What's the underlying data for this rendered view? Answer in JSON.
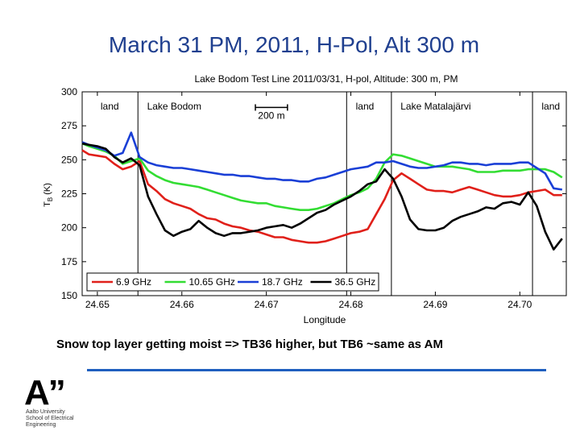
{
  "slide": {
    "title": "March 31 PM, 2011, H-Pol, Alt 300 m",
    "caption": "Snow top layer getting moist => TB36 higher, but TB6 ~same as AM",
    "logo": {
      "mark": "A”",
      "line1": "Aalto University",
      "line2": "School of Electrical",
      "line3": "Engineering"
    }
  },
  "chart_data": {
    "type": "line",
    "title": "Lake Bodom Test Line 2011/03/31, H-pol, Altitude: 300 m, PM",
    "xlabel": "Longitude",
    "ylabel": "T_B (K)",
    "ylabel_main": "T",
    "ylabel_sub": "B",
    "ylabel_unit": "(K)",
    "xlim": [
      24.6482,
      24.7055
    ],
    "ylim": [
      150,
      300
    ],
    "xticks": [
      24.65,
      24.66,
      24.67,
      24.68,
      24.69,
      24.7
    ],
    "xtick_labels": [
      "24.65",
      "24.66",
      "24.67",
      "24.68",
      "24.69",
      "24.70"
    ],
    "yticks": [
      150,
      175,
      200,
      225,
      250,
      275,
      300
    ],
    "ytick_labels": [
      "150",
      "175",
      "200",
      "225",
      "250",
      "275",
      "300"
    ],
    "boundaries": [
      24.6548,
      24.6795,
      24.6848,
      24.7015
    ],
    "region_labels": [
      {
        "text": "land",
        "x": 24.65
      },
      {
        "text": "Lake Bodom",
        "x": 24.6555
      },
      {
        "text": "land",
        "x": 24.6802
      },
      {
        "text": "Lake Matalajärvi",
        "x": 24.6855
      },
      {
        "text": "land",
        "x": 24.7022
      }
    ],
    "scale_bar": {
      "label": "200 m",
      "x_start": 24.6687,
      "x_end": 24.6725,
      "y": 295
    },
    "legend_position": "bottom",
    "series": [
      {
        "name": "6.9 GHz",
        "color": "#e0201a",
        "x": [
          24.6482,
          24.649,
          24.65,
          24.651,
          24.652,
          24.653,
          24.654,
          24.655,
          24.656,
          24.657,
          24.658,
          24.659,
          24.66,
          24.661,
          24.662,
          24.663,
          24.664,
          24.665,
          24.666,
          24.667,
          24.668,
          24.669,
          24.67,
          24.671,
          24.672,
          24.673,
          24.674,
          24.675,
          24.676,
          24.677,
          24.678,
          24.679,
          24.68,
          24.681,
          24.682,
          24.683,
          24.684,
          24.685,
          24.686,
          24.687,
          24.688,
          24.689,
          24.69,
          24.691,
          24.692,
          24.693,
          24.694,
          24.695,
          24.696,
          24.697,
          24.698,
          24.699,
          24.7,
          24.701,
          24.702,
          24.703,
          24.704,
          24.705
        ],
        "y": [
          257,
          254,
          253,
          252,
          247,
          243,
          245,
          249,
          232,
          227,
          221,
          218,
          216,
          214,
          210,
          207,
          206,
          203,
          201,
          200,
          198,
          197,
          195,
          193,
          193,
          191,
          190,
          189,
          189,
          190,
          192,
          194,
          196,
          197,
          199,
          210,
          221,
          235,
          240,
          236,
          232,
          228,
          227,
          227,
          226,
          228,
          230,
          228,
          226,
          224,
          223,
          223,
          224,
          226,
          227,
          228,
          224,
          224
        ]
      },
      {
        "name": "10.65 GHz",
        "color": "#33dd33",
        "x": [
          24.6482,
          24.649,
          24.65,
          24.651,
          24.652,
          24.653,
          24.654,
          24.655,
          24.656,
          24.657,
          24.658,
          24.659,
          24.66,
          24.661,
          24.662,
          24.663,
          24.664,
          24.665,
          24.666,
          24.667,
          24.668,
          24.669,
          24.67,
          24.671,
          24.672,
          24.673,
          24.674,
          24.675,
          24.676,
          24.677,
          24.678,
          24.679,
          24.68,
          24.681,
          24.682,
          24.683,
          24.684,
          24.685,
          24.686,
          24.687,
          24.688,
          24.689,
          24.69,
          24.691,
          24.692,
          24.693,
          24.694,
          24.695,
          24.696,
          24.697,
          24.698,
          24.699,
          24.7,
          24.701,
          24.702,
          24.703,
          24.704,
          24.705
        ],
        "y": [
          262,
          260,
          258,
          256,
          253,
          247,
          249,
          251,
          242,
          238,
          235,
          233,
          232,
          231,
          230,
          228,
          226,
          224,
          222,
          220,
          219,
          218,
          218,
          216,
          215,
          214,
          213,
          213,
          214,
          216,
          218,
          221,
          224,
          226,
          229,
          236,
          248,
          254,
          253,
          251,
          249,
          247,
          245,
          245,
          245,
          244,
          243,
          241,
          241,
          241,
          242,
          242,
          242,
          243,
          243,
          243,
          241,
          237
        ]
      },
      {
        "name": "18.7 GHz",
        "color": "#1a3fd6",
        "x": [
          24.6482,
          24.649,
          24.65,
          24.651,
          24.652,
          24.653,
          24.654,
          24.655,
          24.656,
          24.657,
          24.658,
          24.659,
          24.66,
          24.661,
          24.662,
          24.663,
          24.664,
          24.665,
          24.666,
          24.667,
          24.668,
          24.669,
          24.67,
          24.671,
          24.672,
          24.673,
          24.674,
          24.675,
          24.676,
          24.677,
          24.678,
          24.679,
          24.68,
          24.681,
          24.682,
          24.683,
          24.684,
          24.685,
          24.686,
          24.687,
          24.688,
          24.689,
          24.69,
          24.691,
          24.692,
          24.693,
          24.694,
          24.695,
          24.696,
          24.697,
          24.698,
          24.699,
          24.7,
          24.701,
          24.702,
          24.703,
          24.704,
          24.705
        ],
        "y": [
          263,
          261,
          259,
          257,
          253,
          255,
          270,
          252,
          248,
          246,
          245,
          244,
          244,
          243,
          242,
          241,
          240,
          239,
          239,
          238,
          238,
          237,
          236,
          236,
          235,
          235,
          234,
          234,
          236,
          237,
          239,
          241,
          243,
          244,
          245,
          248,
          248,
          249,
          247,
          245,
          244,
          244,
          245,
          246,
          248,
          248,
          247,
          247,
          246,
          247,
          247,
          247,
          248,
          248,
          244,
          240,
          229,
          228
        ]
      },
      {
        "name": "36.5 GHz",
        "color": "#000000",
        "x": [
          24.6482,
          24.649,
          24.65,
          24.651,
          24.652,
          24.653,
          24.654,
          24.655,
          24.656,
          24.657,
          24.658,
          24.659,
          24.66,
          24.661,
          24.662,
          24.663,
          24.664,
          24.665,
          24.666,
          24.667,
          24.668,
          24.669,
          24.67,
          24.671,
          24.672,
          24.673,
          24.674,
          24.675,
          24.676,
          24.677,
          24.678,
          24.679,
          24.68,
          24.681,
          24.682,
          24.683,
          24.684,
          24.685,
          24.686,
          24.687,
          24.688,
          24.689,
          24.69,
          24.691,
          24.692,
          24.693,
          24.694,
          24.695,
          24.696,
          24.697,
          24.698,
          24.699,
          24.7,
          24.701,
          24.702,
          24.703,
          24.704,
          24.705
        ],
        "y": [
          262,
          261,
          260,
          258,
          252,
          248,
          251,
          246,
          223,
          210,
          198,
          194,
          197,
          199,
          205,
          200,
          196,
          194,
          196,
          196,
          197,
          198,
          200,
          201,
          202,
          200,
          203,
          207,
          211,
          213,
          217,
          220,
          223,
          227,
          232,
          234,
          243,
          236,
          223,
          206,
          199,
          198,
          198,
          200,
          205,
          208,
          210,
          212,
          215,
          214,
          218,
          219,
          217,
          226,
          216,
          197,
          184,
          192
        ]
      }
    ]
  }
}
